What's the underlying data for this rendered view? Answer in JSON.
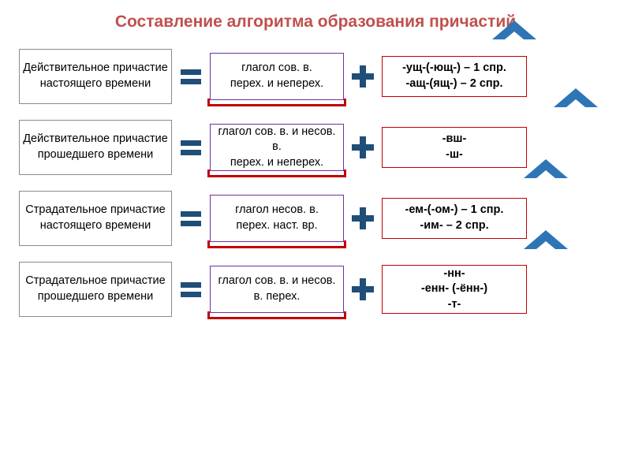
{
  "title": "Составление алгоритма образования причастий",
  "colors": {
    "titleColor": "#c0504d",
    "leftBoxBorder": "#8a8a8a",
    "midBoxBorder": "#7030a0",
    "rightBoxBorder": "#c00000",
    "bracketColor": "#c00000",
    "iconFill": "#1f4e79",
    "chevronFill": "#2e75b6"
  },
  "rows": [
    {
      "left": "Действительное причастие настоящего времени",
      "mid": "глагол сов. в.\nперех. и неперех.",
      "right": "-ущ-(-ющ-) – 1 спр.\n-ащ-(ящ-) – 2 спр.",
      "chevronTop": -36,
      "chevronLeft": 600
    },
    {
      "left": "Действительное причастие прошедшего времени",
      "mid": "глагол сов. в. и несов. в.\nперех. и неперех.",
      "right": "-вш-\n-ш-",
      "chevronTop": -40,
      "chevronLeft": 678
    },
    {
      "left": "Страдательное причастие настоящего времени",
      "mid": "глагол несов. в.\nперех.  наст. вр.",
      "right": "-ем-(-ом-) – 1 спр.\n-им- – 2 спр.",
      "chevronTop": -40,
      "chevronLeft": 640
    },
    {
      "left": "Страдательное причастие прошедшего времени",
      "mid": "глагол сов. в. и несов. в. перех.",
      "right": "-нн-\n-енн- (-ённ-)\n-т-",
      "chevronTop": -40,
      "chevronLeft": 640
    }
  ]
}
